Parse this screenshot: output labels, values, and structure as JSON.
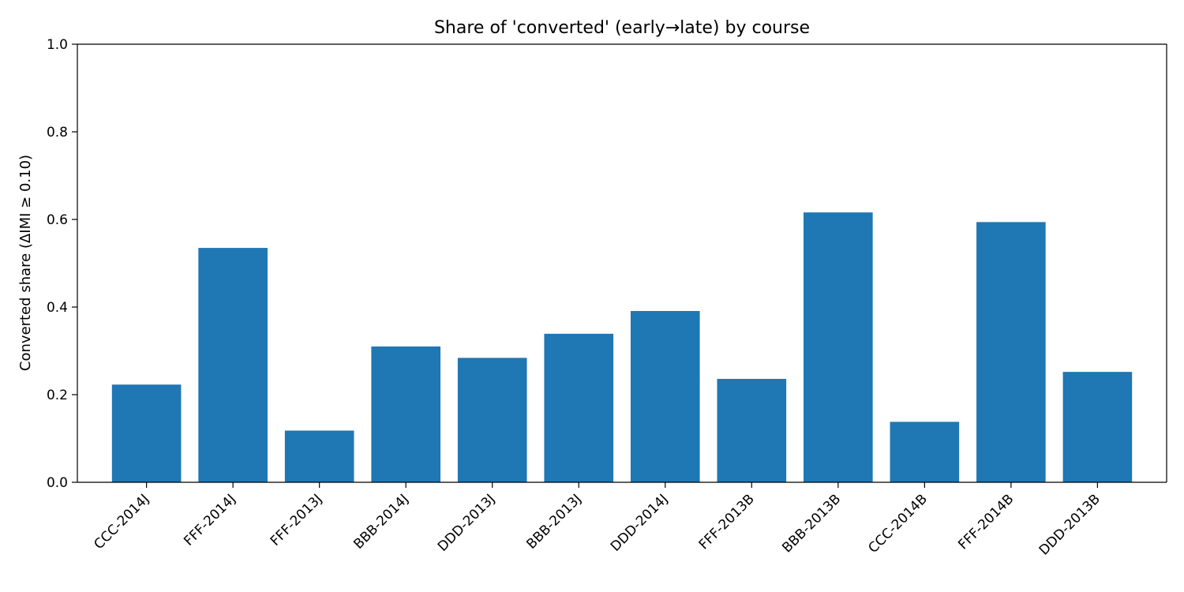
{
  "chart_data": {
    "type": "bar",
    "title": "Share of 'converted' (early→late) by course",
    "xlabel": "",
    "ylabel": "Converted share (ΔIMI ≥ 0.10)",
    "categories": [
      "CCC-2014J",
      "FFF-2014J",
      "FFF-2013J",
      "BBB-2014J",
      "DDD-2013J",
      "BBB-2013J",
      "DDD-2014J",
      "FFF-2013B",
      "BBB-2013B",
      "CCC-2014B",
      "FFF-2014B",
      "DDD-2013B"
    ],
    "values": [
      0.223,
      0.535,
      0.118,
      0.31,
      0.284,
      0.339,
      0.391,
      0.236,
      0.616,
      0.138,
      0.594,
      0.252
    ],
    "ylim": [
      0.0,
      1.0
    ],
    "yticks": [
      0.0,
      0.2,
      0.4,
      0.6,
      0.8,
      1.0
    ],
    "ytick_labels": [
      "0.0",
      "0.2",
      "0.4",
      "0.6",
      "0.8",
      "1.0"
    ],
    "bar_color": "#1f77b4",
    "grid": false,
    "legend": "none"
  }
}
